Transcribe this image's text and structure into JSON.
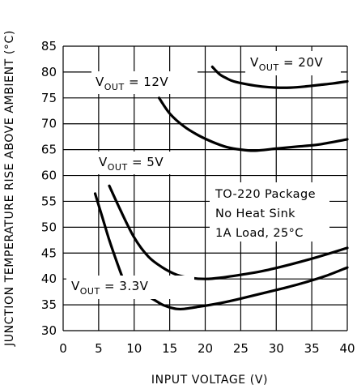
{
  "chart_data": {
    "type": "line",
    "xlabel": "INPUT VOLTAGE (V)",
    "ylabel": "JUNCTION TEMPERATURE RISE ABOVE AMBIENT (°C)",
    "xlim": [
      0,
      40
    ],
    "ylim": [
      30,
      85
    ],
    "xticks": [
      "0",
      "5",
      "10",
      "15",
      "20",
      "25",
      "30",
      "35",
      "40"
    ],
    "yticks": [
      "30",
      "35",
      "40",
      "45",
      "50",
      "55",
      "60",
      "65",
      "70",
      "75",
      "80",
      "85"
    ],
    "grid": true,
    "annotation": [
      "TO-220 Package",
      "No Heat Sink",
      "1A Load, 25°C"
    ],
    "series": [
      {
        "label_main": "V",
        "label_sub": "OUT",
        "label_rest": " = 20V",
        "x": [
          21,
          22,
          23,
          24,
          26,
          28,
          30,
          32,
          34,
          36,
          38,
          40
        ],
        "y": [
          81,
          79.6,
          78.8,
          78.2,
          77.6,
          77.2,
          77,
          77,
          77.2,
          77.5,
          77.8,
          78.2
        ]
      },
      {
        "label_main": "V",
        "label_sub": "OUT",
        "label_rest": " = 12V",
        "x": [
          13.5,
          15,
          17,
          19,
          21,
          23,
          25,
          27,
          30,
          33,
          36,
          40
        ],
        "y": [
          75,
          72,
          69.5,
          67.8,
          66.5,
          65.5,
          65,
          64.8,
          65.2,
          65.6,
          66,
          67
        ]
      },
      {
        "label_main": "V",
        "label_sub": "OUT",
        "label_rest": " = 5V",
        "x": [
          6.5,
          8,
          10,
          12,
          14,
          16,
          18,
          20,
          22,
          25,
          28,
          32,
          36,
          40
        ],
        "y": [
          58,
          53.5,
          48,
          44.3,
          42.2,
          40.8,
          40.2,
          40,
          40.2,
          40.8,
          41.5,
          42.8,
          44.3,
          46
        ]
      },
      {
        "label_main": "V",
        "label_sub": "OUT",
        "label_rest": " = 3.3V",
        "x": [
          4.5,
          5.5,
          6.5,
          7.5,
          8.5,
          9.2
        ],
        "y": [
          56.5,
          52,
          47.5,
          43.5,
          39.8,
          38
        ]
      },
      {
        "label_main": "",
        "label_sub": "",
        "label_rest": "",
        "x": [
          11.8,
          13,
          14,
          15,
          16,
          17,
          19,
          22,
          25,
          28,
          31,
          34,
          37,
          40
        ],
        "y": [
          36.8,
          35.8,
          35,
          34.5,
          34.2,
          34.2,
          34.6,
          35.3,
          36.2,
          37.2,
          38.2,
          39.3,
          40.6,
          42.2
        ]
      }
    ]
  }
}
